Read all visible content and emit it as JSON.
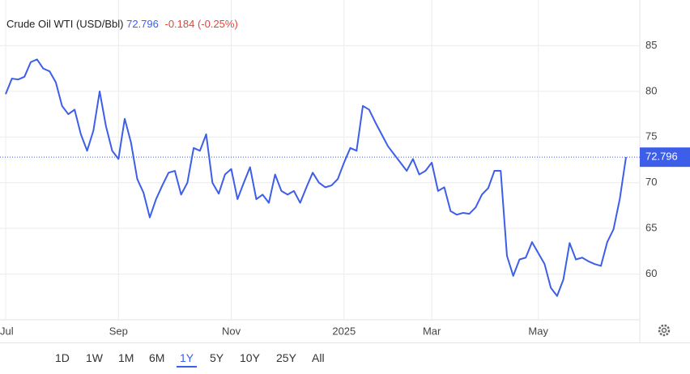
{
  "chart_data": {
    "type": "line",
    "title": "Crude Oil WTI (USD/Bbl)",
    "last": 72.796,
    "change": "-0.184 (-0.25%)",
    "categories": [
      "Jul",
      null,
      null,
      null,
      null,
      null,
      null,
      null,
      null,
      null,
      null,
      null,
      null,
      null,
      null,
      null,
      null,
      null,
      "Sep",
      null,
      null,
      null,
      null,
      null,
      null,
      null,
      null,
      null,
      null,
      null,
      null,
      null,
      null,
      null,
      null,
      null,
      "Nov",
      null,
      null,
      null,
      null,
      null,
      null,
      null,
      null,
      null,
      null,
      null,
      null,
      null,
      null,
      null,
      null,
      null,
      "2025",
      null,
      null,
      null,
      null,
      null,
      null,
      null,
      null,
      null,
      null,
      null,
      null,
      null,
      "Mar",
      null,
      null,
      null,
      null,
      null,
      null,
      null,
      null,
      null,
      null,
      null,
      null,
      null,
      null,
      null,
      null,
      "May",
      null,
      null,
      null,
      null,
      null,
      null,
      null,
      null,
      null,
      null,
      null,
      null,
      null,
      null
    ],
    "series": [
      {
        "color": "#3d5ee8",
        "values": [
          79.7,
          81.4,
          81.3,
          81.6,
          83.2,
          83.5,
          82.5,
          82.2,
          81.0,
          78.4,
          77.5,
          78.0,
          75.3,
          73.5,
          75.7,
          80.0,
          76.2,
          73.5,
          72.6,
          77.0,
          74.4,
          70.4,
          68.9,
          66.2,
          68.2,
          69.7,
          71.1,
          71.3,
          68.7,
          70.0,
          73.8,
          73.5,
          75.3,
          70.0,
          68.8,
          70.9,
          71.5,
          68.2,
          70.0,
          71.7,
          68.2,
          68.7,
          67.8,
          70.9,
          69.1,
          68.7,
          69.1,
          67.8,
          69.5,
          71.1,
          70.0,
          69.5,
          69.7,
          70.4,
          72.2,
          73.8,
          73.5,
          78.4,
          78.0,
          76.6,
          75.3,
          74.0,
          73.1,
          72.2,
          71.3,
          72.6,
          70.9,
          71.3,
          72.2,
          69.1,
          69.5,
          66.9,
          66.5,
          66.7,
          66.6,
          67.3,
          68.7,
          69.4,
          71.3,
          71.3,
          62.0,
          59.8,
          61.6,
          61.8,
          63.5,
          62.3,
          61.1,
          58.5,
          57.6,
          59.4,
          63.4,
          61.6,
          61.8,
          61.4,
          61.1,
          60.9,
          63.5,
          64.9,
          68.2,
          72.8
        ]
      }
    ],
    "ylim": [
      55,
      90
    ],
    "yticks": [
      60,
      65,
      70,
      75,
      80,
      85
    ],
    "grid": true,
    "ranges": [
      "1D",
      "1W",
      "1M",
      "6M",
      "1Y",
      "5Y",
      "10Y",
      "25Y",
      "All"
    ],
    "selected": 4
  }
}
